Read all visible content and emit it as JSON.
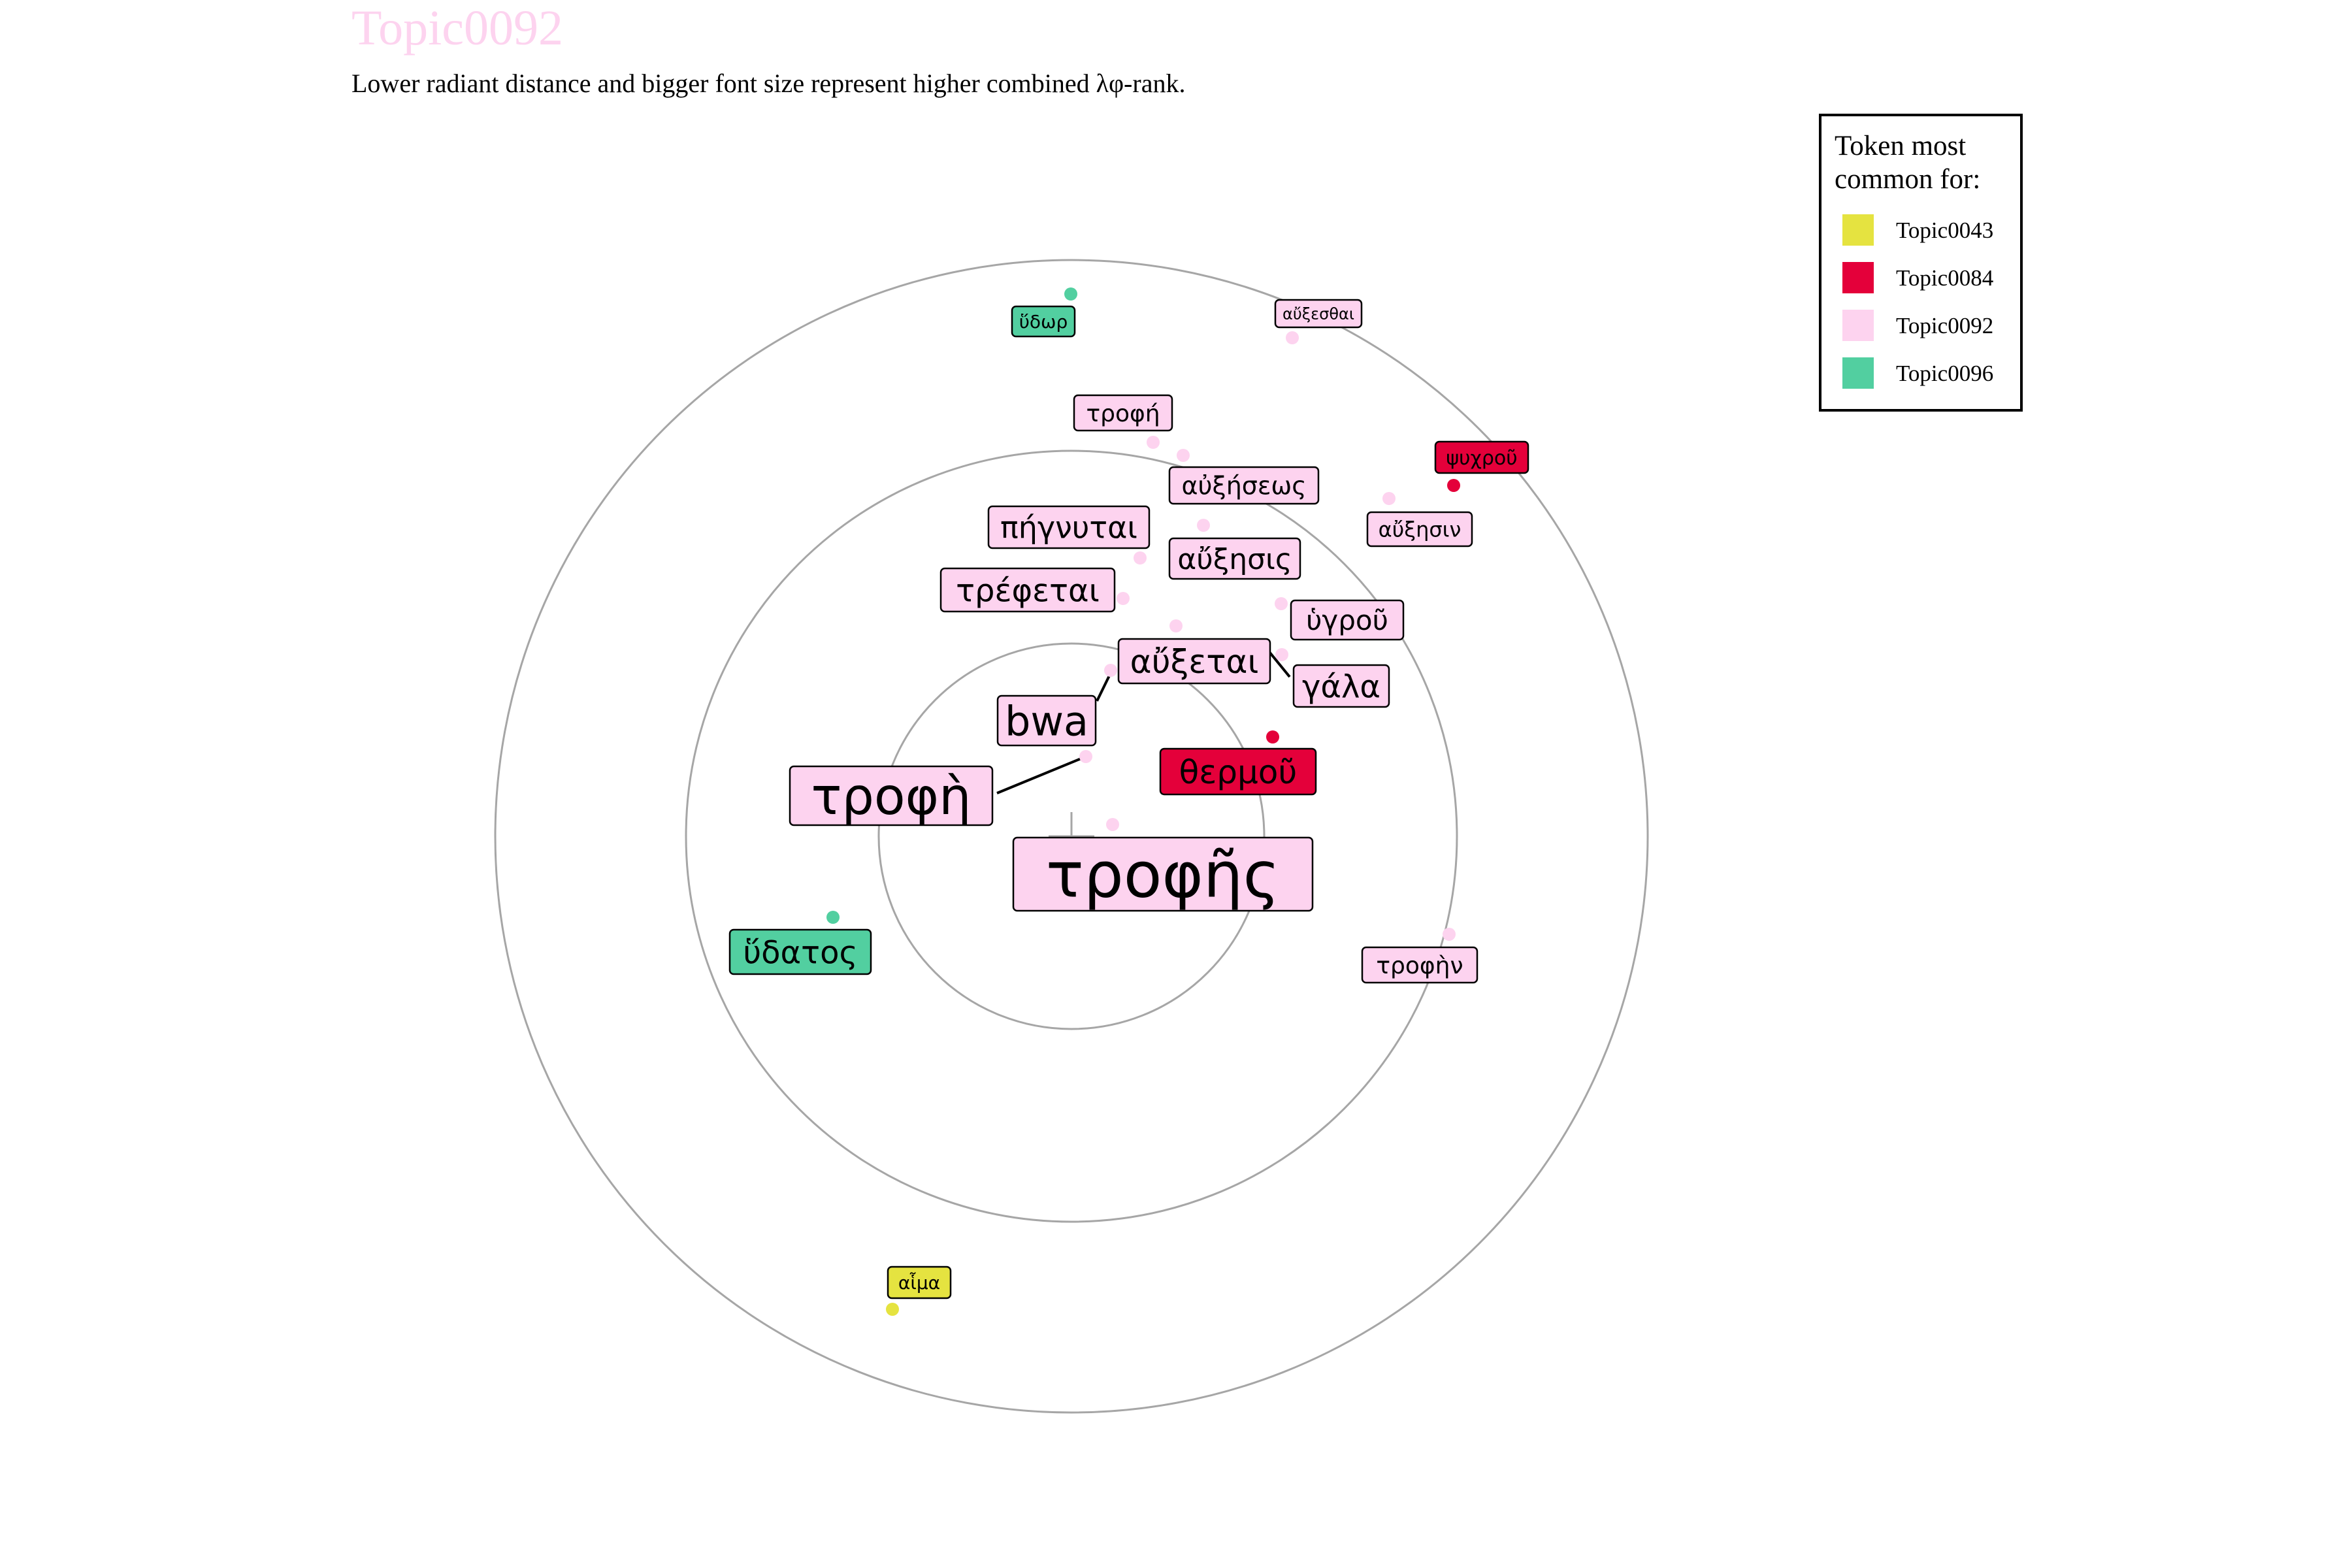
{
  "chart_data": {
    "type": "scatter",
    "title": "Topic0092",
    "subtitle": "Lower radiant distance and bigger font size represent higher combined λφ-rank.",
    "legend": {
      "title_lines": [
        "Token most",
        "common for:"
      ],
      "placement": "top-right",
      "entries": [
        {
          "name": "Topic0043",
          "color": "#e5e340"
        },
        {
          "name": "Topic0084",
          "color": "#e4003a"
        },
        {
          "name": "Topic0092",
          "color": "#fdd3ef"
        },
        {
          "name": "Topic0096",
          "color": "#52cfa0"
        }
      ]
    },
    "rings": [
      1,
      2,
      3
    ],
    "points": [
      {
        "token": "τροφῆς",
        "topic": "Topic0092",
        "rank": 1
      },
      {
        "token": "τροφὴ",
        "topic": "Topic0092",
        "rank": 2
      },
      {
        "token": "bwa",
        "topic": "Topic0092",
        "rank": 3
      },
      {
        "token": "θερμοῦ",
        "topic": "Topic0084",
        "rank": 4
      },
      {
        "token": "ὕδατος",
        "topic": "Topic0096",
        "rank": 5
      },
      {
        "token": "αὔξεται",
        "topic": "Topic0092",
        "rank": 6
      },
      {
        "token": "τρέφεται",
        "topic": "Topic0092",
        "rank": 7
      },
      {
        "token": "πήγνυται",
        "topic": "Topic0092",
        "rank": 8
      },
      {
        "token": "αὔξησις",
        "topic": "Topic0092",
        "rank": 9
      },
      {
        "token": "γάλα",
        "topic": "Topic0092",
        "rank": 10
      },
      {
        "token": "ὑγροῦ",
        "topic": "Topic0092",
        "rank": 11
      },
      {
        "token": "αὐξήσεως",
        "topic": "Topic0092",
        "rank": 12
      },
      {
        "token": "τροφὴν",
        "topic": "Topic0092",
        "rank": 13
      },
      {
        "token": "τροφή",
        "topic": "Topic0092",
        "rank": 14
      },
      {
        "token": "αὔξησιν",
        "topic": "Topic0092",
        "rank": 15
      },
      {
        "token": "ψυχροῦ",
        "topic": "Topic0084",
        "rank": 16
      },
      {
        "token": "ὕδωρ",
        "topic": "Topic0096",
        "rank": 17
      },
      {
        "token": "αὔξεσθαι",
        "topic": "Topic0092",
        "rank": 18
      },
      {
        "token": "αἷμα",
        "topic": "Topic0043",
        "rank": 19
      }
    ]
  }
}
